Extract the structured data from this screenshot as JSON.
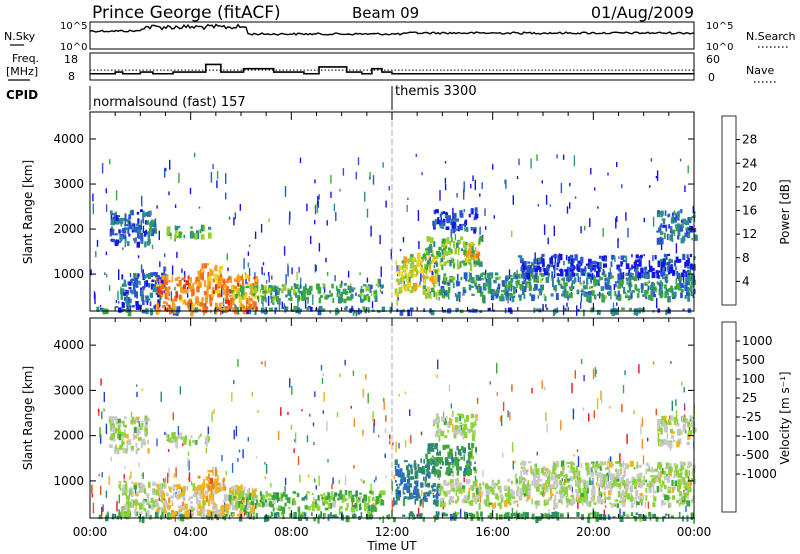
{
  "header": {
    "station": "Prince George (fitACF)",
    "beam": "Beam 09",
    "date": "01/Aug/2009"
  },
  "strip_panels": {
    "nsky_label": "N.Sky",
    "nsky_top_tick": "10^5",
    "nsky_bottom_tick": "10^0",
    "nsearch_label": "N.Search",
    "nsearch_top_tick": "10^5",
    "nsearch_bottom_tick": "10^0",
    "freq_label_1": "Freq.",
    "freq_label_2": "[MHz]",
    "freq_ticks": [
      "18",
      "8"
    ],
    "nave_label": "Nave",
    "nave_ticks": [
      "60",
      "0"
    ],
    "cpid_label": "CPID",
    "cpid_modes": [
      {
        "name": "normalsound (fast) 157",
        "start_hour": 0
      },
      {
        "name": "themis 3300",
        "start_hour": 12
      }
    ],
    "freq_series_hours": [
      0,
      1,
      1.3,
      2,
      2.5,
      3.3,
      4.6,
      5.2,
      6.1,
      7.3,
      8.5,
      9.1,
      10.2,
      10.8,
      11.2,
      11.6,
      12,
      24
    ],
    "freq_series_mhz": [
      10.5,
      11.5,
      10.5,
      11.5,
      10.5,
      11.5,
      16,
      11.5,
      13.5,
      11.5,
      10.5,
      14.5,
      11.5,
      10.5,
      13.5,
      11.5,
      10.5,
      10.5
    ],
    "nave_dotted_level": 22
  },
  "chart_data": [
    {
      "type": "heatmap",
      "panel": "power",
      "xlabel": "Time UT",
      "ylabel": "Slant Range [km]",
      "xlim": [
        0,
        24
      ],
      "ylim": [
        180,
        4600
      ],
      "xticks": [
        "00:00",
        "04:00",
        "08:00",
        "12:00",
        "16:00",
        "20:00",
        "00:00"
      ],
      "xtick_values": [
        0,
        4,
        8,
        12,
        16,
        20,
        24
      ],
      "yticks": [
        1000,
        2000,
        3000,
        4000
      ],
      "colorbar_label": "Power [dB]",
      "colorbar_ticks": [
        "4",
        "8",
        "12",
        "16",
        "20",
        "24",
        "28"
      ],
      "colorbar_range": [
        0,
        32
      ],
      "colorbar_colors": [
        "#1414e6",
        "#2a55cc",
        "#2d8c8c",
        "#3aa83a",
        "#9ccc33",
        "#f0d21e",
        "#f5a01e",
        "#f06e1e",
        "#e63214",
        "#e60a0a"
      ],
      "vertical_marker_hour": 12,
      "regions": [
        {
          "t0": 0.2,
          "t1": 12.0,
          "r0": 200,
          "r1": 300,
          "level": 1.6
        },
        {
          "t0": 12.0,
          "t1": 24.0,
          "r0": 200,
          "r1": 260,
          "level": 1.6
        },
        {
          "t0": 0.7,
          "t1": 2.3,
          "r0": 1700,
          "r1": 2450,
          "level": 1.2
        },
        {
          "t0": 2.2,
          "t1": 2.6,
          "r0": 1900,
          "r1": 2250,
          "level": 2.2
        },
        {
          "t0": 3.0,
          "t1": 4.7,
          "r0": 1850,
          "r1": 2100,
          "level": 3.2
        },
        {
          "t0": 1.2,
          "t1": 3.0,
          "r0": 300,
          "r1": 1050,
          "level": 1.1
        },
        {
          "t0": 2.6,
          "t1": 6.6,
          "r0": 200,
          "r1": 1000,
          "level": 6.5
        },
        {
          "t0": 4.2,
          "t1": 5.2,
          "r0": 900,
          "r1": 1250,
          "level": 6.2
        },
        {
          "t0": 5.5,
          "t1": 7.0,
          "r0": 500,
          "r1": 800,
          "level": 4.0
        },
        {
          "t0": 6.7,
          "t1": 11.6,
          "r0": 450,
          "r1": 800,
          "level": 2.6
        },
        {
          "t0": 12.1,
          "t1": 13.8,
          "r0": 550,
          "r1": 1500,
          "level": 4.4
        },
        {
          "t0": 13.3,
          "t1": 15.5,
          "r0": 1200,
          "r1": 1850,
          "level": 3.3
        },
        {
          "t0": 14.8,
          "t1": 15.4,
          "r0": 1350,
          "r1": 1650,
          "level": 5.8
        },
        {
          "t0": 13.8,
          "t1": 24.0,
          "r0": 500,
          "r1": 1050,
          "level": 2.3
        },
        {
          "t0": 17.0,
          "t1": 24.0,
          "r0": 1000,
          "r1": 1450,
          "level": 0.6
        },
        {
          "t0": 13.6,
          "t1": 15.3,
          "r0": 2000,
          "r1": 2500,
          "level": 0.9
        },
        {
          "t0": 22.5,
          "t1": 24.0,
          "r0": 1800,
          "r1": 2450,
          "level": 1.6
        }
      ]
    },
    {
      "type": "heatmap",
      "panel": "velocity",
      "xlabel": "Time UT",
      "ylabel": "Slant Range [km]",
      "xlim": [
        0,
        24
      ],
      "ylim": [
        180,
        4600
      ],
      "xticks": [
        "00:00",
        "04:00",
        "08:00",
        "12:00",
        "16:00",
        "20:00",
        "00:00"
      ],
      "xtick_values": [
        0,
        4,
        8,
        12,
        16,
        20,
        24
      ],
      "yticks": [
        1000,
        2000,
        3000,
        4000
      ],
      "colorbar_label": "Velocity [m s⁻¹]",
      "colorbar_ticks": [
        "1000",
        "500",
        "100",
        "25",
        "-25",
        "-100",
        "-500",
        "-1000"
      ],
      "colorbar_colors": [
        "#1e3cdc",
        "#2c6bc0",
        "#2e8a6a",
        "#3aa83a",
        "#8cd23c",
        "#c8c8c8",
        "#f0b41e",
        "#f08c1e",
        "#e8501e",
        "#e61414"
      ],
      "vertical_marker_hour": 12,
      "regions": [
        {
          "t0": 0.2,
          "t1": 24.0,
          "r0": 200,
          "r1": 330,
          "class": 3
        },
        {
          "t0": 0.7,
          "t1": 2.3,
          "r0": 1700,
          "r1": 2450,
          "class": 5
        },
        {
          "t0": 3.0,
          "t1": 4.7,
          "r0": 1850,
          "r1": 2100,
          "class": 5
        },
        {
          "t0": 1.2,
          "t1": 3.0,
          "r0": 300,
          "r1": 1050,
          "class": 5
        },
        {
          "t0": 2.6,
          "t1": 6.6,
          "r0": 250,
          "r1": 950,
          "class": 6
        },
        {
          "t0": 4.2,
          "t1": 5.3,
          "r0": 850,
          "r1": 1250,
          "class": 7
        },
        {
          "t0": 5.5,
          "t1": 7.2,
          "r0": 450,
          "r1": 800,
          "class": 4
        },
        {
          "t0": 7.2,
          "t1": 11.6,
          "r0": 400,
          "r1": 800,
          "class": 4
        },
        {
          "t0": 12.1,
          "t1": 13.8,
          "r0": 550,
          "r1": 1500,
          "class": 2
        },
        {
          "t0": 13.3,
          "t1": 15.3,
          "r0": 1200,
          "r1": 1850,
          "class": 3
        },
        {
          "t0": 13.8,
          "t1": 24.0,
          "r0": 500,
          "r1": 1050,
          "class": 5
        },
        {
          "t0": 17.0,
          "t1": 24.0,
          "r0": 1000,
          "r1": 1450,
          "class": 5
        },
        {
          "t0": 13.6,
          "t1": 15.3,
          "r0": 2000,
          "r1": 2500,
          "class": 5
        },
        {
          "t0": 22.5,
          "t1": 24.0,
          "r0": 1800,
          "r1": 2450,
          "class": 5
        }
      ]
    }
  ]
}
